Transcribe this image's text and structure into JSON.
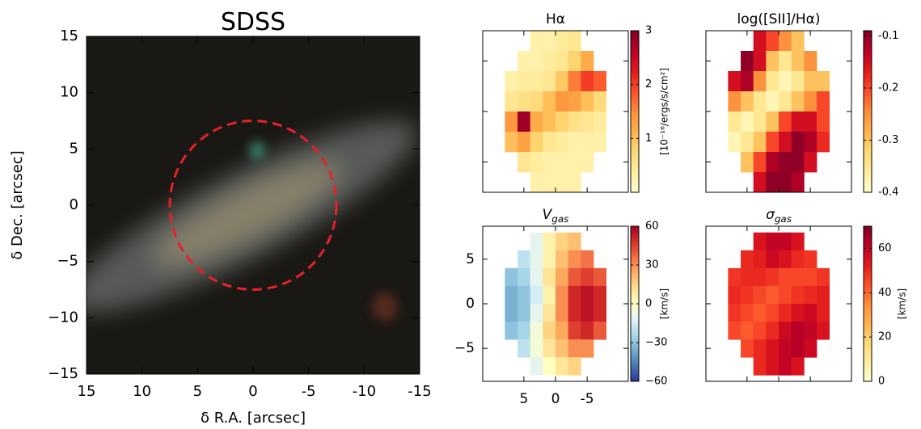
{
  "chart_data": [
    {
      "type": "image",
      "title": "SDSS",
      "xlabel": "δ R.A. [arcsec]",
      "ylabel": "δ Dec. [arcsec]",
      "xlim": [
        15,
        -15
      ],
      "ylim": [
        -15,
        15
      ],
      "xticks": [
        15,
        10,
        5,
        0,
        -5,
        -10,
        -15
      ],
      "yticks": [
        {
          "value": -15,
          "label": "−15"
        },
        {
          "value": -10,
          "label": "−10"
        },
        {
          "value": -5,
          "label": "−5"
        },
        0,
        5,
        10,
        15
      ],
      "aperture": {
        "center": [
          0,
          0
        ],
        "radius": 7.5,
        "color": "#e8202a"
      }
    },
    {
      "type": "heatmap",
      "title": "Hα",
      "colorbar_label": "[10⁻¹⁶/ergs/s/cm²]",
      "cmap": "YlOrRd",
      "clim": [
        0,
        3
      ],
      "cticks": [
        1,
        2,
        3
      ],
      "xlim": [
        11.5,
        -11.5
      ],
      "ylim": [
        -8,
        8
      ],
      "xticks": [
        5,
        0,
        -5
      ],
      "yticks": [
        -5,
        0,
        5
      ],
      "show_tick_labels": false,
      "extent": [
        8,
        -8,
        8,
        -8
      ],
      "grid": [
        [
          null,
          null,
          0.3,
          0.3,
          0.4,
          0.5,
          null,
          null
        ],
        [
          null,
          0.3,
          0.3,
          0.4,
          0.5,
          0.8,
          1.2,
          null
        ],
        [
          0.3,
          0.4,
          0.4,
          0.5,
          0.9,
          1.6,
          2.0,
          1.8
        ],
        [
          0.5,
          0.6,
          0.7,
          1.0,
          1.4,
          1.3,
          1.0,
          0.7
        ],
        [
          1.4,
          2.8,
          1.2,
          1.0,
          0.8,
          0.6,
          0.5,
          0.4
        ],
        [
          1.0,
          1.3,
          0.8,
          0.5,
          0.4,
          0.3,
          0.3,
          0.3
        ],
        [
          null,
          0.5,
          0.4,
          0.3,
          0.3,
          0.3,
          0.3,
          null
        ],
        [
          null,
          null,
          0.3,
          0.3,
          0.3,
          0.3,
          null,
          null
        ]
      ]
    },
    {
      "type": "heatmap",
      "title": "log([SII]/Hα)",
      "cmap": "YlOrRd",
      "clim": [
        -0.4,
        -0.09
      ],
      "cticks": [
        -0.4,
        -0.3,
        -0.2,
        -0.1
      ],
      "xlim": [
        11.5,
        -11.5
      ],
      "ylim": [
        -8,
        8
      ],
      "xticks": [
        5,
        0,
        -5
      ],
      "yticks": [
        -5,
        0,
        5
      ],
      "show_tick_labels": false,
      "extent": [
        8,
        -8,
        8,
        -8
      ],
      "grid": [
        [
          null,
          null,
          -0.15,
          -0.2,
          -0.25,
          -0.3,
          null,
          null
        ],
        [
          null,
          -0.1,
          -0.15,
          -0.3,
          -0.35,
          -0.3,
          -0.25,
          null
        ],
        [
          -0.15,
          -0.12,
          -0.25,
          -0.35,
          -0.38,
          -0.35,
          -0.3,
          -0.3
        ],
        [
          -0.25,
          -0.3,
          -0.35,
          -0.38,
          -0.35,
          -0.3,
          -0.25,
          -0.2
        ],
        [
          -0.35,
          -0.38,
          -0.35,
          -0.3,
          -0.2,
          -0.15,
          -0.15,
          -0.2
        ],
        [
          -0.38,
          -0.35,
          -0.3,
          -0.2,
          -0.15,
          -0.1,
          -0.12,
          -0.18
        ],
        [
          null,
          -0.3,
          -0.2,
          -0.12,
          -0.1,
          -0.1,
          -0.15,
          null
        ],
        [
          null,
          null,
          -0.15,
          -0.1,
          -0.1,
          -0.12,
          null,
          null
        ]
      ]
    },
    {
      "type": "heatmap",
      "title": "V",
      "title_sub": "gas",
      "colorbar_label": "[km/s]",
      "cmap": "RdYlBu_r",
      "clim": [
        -60,
        60
      ],
      "cticks": [
        {
          "value": -60,
          "label": "−60"
        },
        {
          "value": -30,
          "label": "−30"
        },
        0,
        30,
        60
      ],
      "xlim": [
        11.5,
        -11.5
      ],
      "ylim": [
        -8.7,
        8.7
      ],
      "xticks": [
        5,
        0,
        -5
      ],
      "yticks": [
        {
          "value": -5,
          "label": "−5"
        },
        0,
        5
      ],
      "show_tick_labels": true,
      "extent": [
        8,
        -8,
        8,
        -8
      ],
      "grid": [
        [
          null,
          null,
          -10,
          5,
          15,
          20,
          null,
          null
        ],
        [
          null,
          -20,
          -10,
          5,
          20,
          30,
          35,
          null
        ],
        [
          -30,
          -25,
          -10,
          10,
          25,
          40,
          45,
          40
        ],
        [
          -35,
          -30,
          -15,
          5,
          30,
          50,
          55,
          50
        ],
        [
          -35,
          -30,
          -10,
          10,
          30,
          50,
          55,
          50
        ],
        [
          -30,
          -25,
          -5,
          15,
          25,
          45,
          50,
          40
        ],
        [
          null,
          -20,
          -5,
          10,
          20,
          30,
          30,
          null
        ],
        [
          null,
          null,
          -10,
          0,
          10,
          15,
          null,
          null
        ]
      ]
    },
    {
      "type": "heatmap",
      "title": "σ",
      "title_sub": "gas",
      "colorbar_label": "[km/s]",
      "cmap": "YlOrRd",
      "clim": [
        0,
        70
      ],
      "cticks": [
        0,
        20,
        40,
        60
      ],
      "xlim": [
        11.5,
        -11.5
      ],
      "ylim": [
        -8.7,
        8.7
      ],
      "xticks": [
        5,
        0,
        -5
      ],
      "yticks": [
        -5,
        0,
        5
      ],
      "show_tick_labels": false,
      "extent": [
        8,
        -8,
        8,
        -8
      ],
      "grid": [
        [
          null,
          null,
          55,
          60,
          60,
          55,
          null,
          null
        ],
        [
          null,
          50,
          52,
          58,
          55,
          50,
          48,
          null
        ],
        [
          48,
          50,
          50,
          48,
          45,
          45,
          45,
          48
        ],
        [
          50,
          48,
          45,
          42,
          45,
          48,
          50,
          52
        ],
        [
          48,
          45,
          42,
          45,
          50,
          55,
          58,
          52
        ],
        [
          45,
          42,
          45,
          50,
          58,
          62,
          60,
          55
        ],
        [
          null,
          45,
          50,
          55,
          60,
          62,
          58,
          null
        ],
        [
          null,
          null,
          50,
          55,
          60,
          55,
          null,
          null
        ]
      ]
    }
  ]
}
